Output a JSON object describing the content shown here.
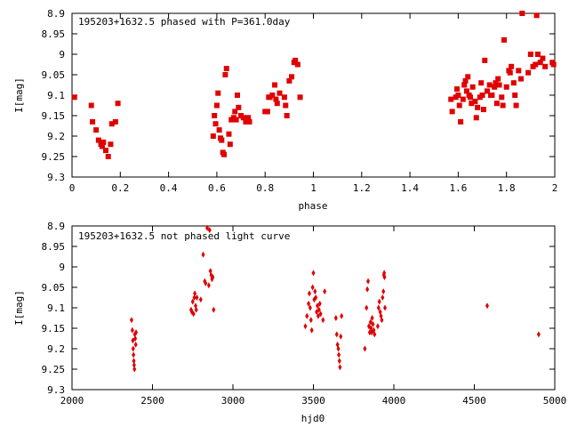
{
  "chart_data": [
    {
      "type": "scatter",
      "title": "195203+1632.5 phased with P=361.0day",
      "xlabel": "phase",
      "ylabel": "I[mag]",
      "xlim": [
        0,
        2
      ],
      "ylim": [
        9.3,
        8.9
      ],
      "y_inverted": true,
      "xticks": [
        "0",
        "0.2",
        "0.4",
        "0.6",
        "0.8",
        "1",
        "1.2",
        "1.4",
        "1.6",
        "1.8",
        "2"
      ],
      "yticks": [
        "8.9",
        "8.95",
        "9",
        "9.05",
        "9.1",
        "9.15",
        "9.2",
        "9.25",
        "9.3"
      ],
      "marker_color": "#e00000",
      "marker": "filled-square",
      "points": [
        [
          0.01,
          9.105
        ],
        [
          0.08,
          9.125
        ],
        [
          0.085,
          9.165
        ],
        [
          0.1,
          9.185
        ],
        [
          0.11,
          9.21
        ],
        [
          0.12,
          9.22
        ],
        [
          0.125,
          9.225
        ],
        [
          0.13,
          9.215
        ],
        [
          0.14,
          9.235
        ],
        [
          0.15,
          9.25
        ],
        [
          0.16,
          9.22
        ],
        [
          0.165,
          9.17
        ],
        [
          0.18,
          9.165
        ],
        [
          0.19,
          9.12
        ],
        [
          0.585,
          9.2
        ],
        [
          0.59,
          9.15
        ],
        [
          0.595,
          9.17
        ],
        [
          0.6,
          9.125
        ],
        [
          0.605,
          9.095
        ],
        [
          0.61,
          9.185
        ],
        [
          0.615,
          9.205
        ],
        [
          0.62,
          9.21
        ],
        [
          0.625,
          9.24
        ],
        [
          0.63,
          9.245
        ],
        [
          0.635,
          9.05
        ],
        [
          0.64,
          9.035
        ],
        [
          0.65,
          9.195
        ],
        [
          0.655,
          9.22
        ],
        [
          0.66,
          9.16
        ],
        [
          0.67,
          9.155
        ],
        [
          0.675,
          9.14
        ],
        [
          0.68,
          9.16
        ],
        [
          0.685,
          9.1
        ],
        [
          0.69,
          9.13
        ],
        [
          0.7,
          9.15
        ],
        [
          0.71,
          9.155
        ],
        [
          0.72,
          9.165
        ],
        [
          0.73,
          9.155
        ],
        [
          0.735,
          9.165
        ],
        [
          0.8,
          9.14
        ],
        [
          0.81,
          9.14
        ],
        [
          0.815,
          9.105
        ],
        [
          0.82,
          9.105
        ],
        [
          0.83,
          9.1
        ],
        [
          0.84,
          9.075
        ],
        [
          0.845,
          9.11
        ],
        [
          0.85,
          9.12
        ],
        [
          0.86,
          9.095
        ],
        [
          0.88,
          9.105
        ],
        [
          0.885,
          9.125
        ],
        [
          0.89,
          9.15
        ],
        [
          0.9,
          9.065
        ],
        [
          0.91,
          9.055
        ],
        [
          0.92,
          9.02
        ],
        [
          0.925,
          9.015
        ],
        [
          0.935,
          9.025
        ],
        [
          0.945,
          9.105
        ],
        [
          1.57,
          9.11
        ],
        [
          1.575,
          9.14
        ],
        [
          1.59,
          9.105
        ],
        [
          1.595,
          9.085
        ],
        [
          1.6,
          9.1
        ],
        [
          1.605,
          9.125
        ],
        [
          1.61,
          9.165
        ],
        [
          1.62,
          9.11
        ],
        [
          1.625,
          9.075
        ],
        [
          1.63,
          9.065
        ],
        [
          1.635,
          9.09
        ],
        [
          1.64,
          9.055
        ],
        [
          1.645,
          9.1
        ],
        [
          1.65,
          9.105
        ],
        [
          1.655,
          9.12
        ],
        [
          1.66,
          9.08
        ],
        [
          1.67,
          9.115
        ],
        [
          1.675,
          9.155
        ],
        [
          1.68,
          9.13
        ],
        [
          1.69,
          9.105
        ],
        [
          1.695,
          9.07
        ],
        [
          1.7,
          9.1
        ],
        [
          1.705,
          9.135
        ],
        [
          1.71,
          9.015
        ],
        [
          1.72,
          9.09
        ],
        [
          1.73,
          9.075
        ],
        [
          1.735,
          9.1
        ],
        [
          1.74,
          9.1
        ],
        [
          1.75,
          9.08
        ],
        [
          1.755,
          9.07
        ],
        [
          1.76,
          9.12
        ],
        [
          1.765,
          9.06
        ],
        [
          1.77,
          9.075
        ],
        [
          1.78,
          9.105
        ],
        [
          1.785,
          9.125
        ],
        [
          1.79,
          8.965
        ],
        [
          1.8,
          9.08
        ],
        [
          1.81,
          9.04
        ],
        [
          1.815,
          9.045
        ],
        [
          1.82,
          9.03
        ],
        [
          1.83,
          9.07
        ],
        [
          1.835,
          9.1
        ],
        [
          1.84,
          9.125
        ],
        [
          1.85,
          9.04
        ],
        [
          1.86,
          9.06
        ],
        [
          1.865,
          8.9
        ],
        [
          1.89,
          9.045
        ],
        [
          1.9,
          9.0
        ],
        [
          1.91,
          9.03
        ],
        [
          1.92,
          9.025
        ],
        [
          1.925,
          8.905
        ],
        [
          1.93,
          9.0
        ],
        [
          1.94,
          9.02
        ],
        [
          1.95,
          9.01
        ],
        [
          1.96,
          9.03
        ],
        [
          1.99,
          9.02
        ],
        [
          1.995,
          9.025
        ]
      ]
    },
    {
      "type": "scatter",
      "title": "195203+1632.5 not phased light curve",
      "xlabel": "hjd0",
      "ylabel": "I[mag]",
      "xlim": [
        2000,
        5000
      ],
      "ylim": [
        9.3,
        8.9
      ],
      "y_inverted": true,
      "xticks": [
        "2000",
        "2500",
        "3000",
        "3500",
        "4000",
        "4500",
        "5000"
      ],
      "yticks": [
        "8.9",
        "8.95",
        "9",
        "9.05",
        "9.1",
        "9.15",
        "9.2",
        "9.25",
        "9.3"
      ],
      "marker_color": "#e00000",
      "marker": "filled-diamond",
      "points": [
        [
          2370,
          9.13
        ],
        [
          2375,
          9.155
        ],
        [
          2378,
          9.18
        ],
        [
          2380,
          9.2
        ],
        [
          2382,
          9.215
        ],
        [
          2384,
          9.23
        ],
        [
          2386,
          9.24
        ],
        [
          2388,
          9.25
        ],
        [
          2390,
          9.165
        ],
        [
          2393,
          9.175
        ],
        [
          2396,
          9.19
        ],
        [
          2398,
          9.16
        ],
        [
          2740,
          9.105
        ],
        [
          2745,
          9.11
        ],
        [
          2750,
          9.085
        ],
        [
          2755,
          9.115
        ],
        [
          2760,
          9.075
        ],
        [
          2763,
          9.065
        ],
        [
          2768,
          9.095
        ],
        [
          2772,
          9.105
        ],
        [
          2776,
          9.075
        ],
        [
          2800,
          9.08
        ],
        [
          2815,
          8.97
        ],
        [
          2825,
          9.035
        ],
        [
          2830,
          9.04
        ],
        [
          2840,
          8.905
        ],
        [
          2850,
          9.045
        ],
        [
          2855,
          8.91
        ],
        [
          2860,
          9.01
        ],
        [
          2865,
          9.02
        ],
        [
          2870,
          9.03
        ],
        [
          2875,
          9.025
        ],
        [
          2880,
          9.105
        ],
        [
          3450,
          9.145
        ],
        [
          3460,
          9.12
        ],
        [
          3470,
          9.09
        ],
        [
          3475,
          9.065
        ],
        [
          3480,
          9.1
        ],
        [
          3485,
          9.13
        ],
        [
          3490,
          9.155
        ],
        [
          3495,
          9.05
        ],
        [
          3500,
          9.015
        ],
        [
          3505,
          9.08
        ],
        [
          3510,
          9.06
        ],
        [
          3515,
          9.075
        ],
        [
          3520,
          9.11
        ],
        [
          3525,
          9.095
        ],
        [
          3530,
          9.12
        ],
        [
          3535,
          9.105
        ],
        [
          3540,
          9.09
        ],
        [
          3545,
          9.115
        ],
        [
          3560,
          9.13
        ],
        [
          3570,
          9.06
        ],
        [
          3640,
          9.125
        ],
        [
          3645,
          9.165
        ],
        [
          3650,
          9.19
        ],
        [
          3655,
          9.2
        ],
        [
          3658,
          9.215
        ],
        [
          3662,
          9.23
        ],
        [
          3665,
          9.245
        ],
        [
          3670,
          9.17
        ],
        [
          3675,
          9.12
        ],
        [
          3820,
          9.2
        ],
        [
          3830,
          9.1
        ],
        [
          3835,
          9.055
        ],
        [
          3840,
          9.035
        ],
        [
          3845,
          9.145
        ],
        [
          3850,
          9.16
        ],
        [
          3855,
          9.135
        ],
        [
          3858,
          9.15
        ],
        [
          3862,
          9.16
        ],
        [
          3865,
          9.125
        ],
        [
          3870,
          9.14
        ],
        [
          3875,
          9.155
        ],
        [
          3880,
          9.165
        ],
        [
          3900,
          9.145
        ],
        [
          3905,
          9.1
        ],
        [
          3910,
          9.085
        ],
        [
          3915,
          9.11
        ],
        [
          3920,
          9.12
        ],
        [
          3925,
          9.13
        ],
        [
          3930,
          9.075
        ],
        [
          3935,
          9.06
        ],
        [
          3938,
          9.02
        ],
        [
          3940,
          9.015
        ],
        [
          3942,
          9.025
        ],
        [
          3945,
          9.1
        ],
        [
          4580,
          9.095
        ],
        [
          4900,
          9.165
        ]
      ]
    }
  ]
}
